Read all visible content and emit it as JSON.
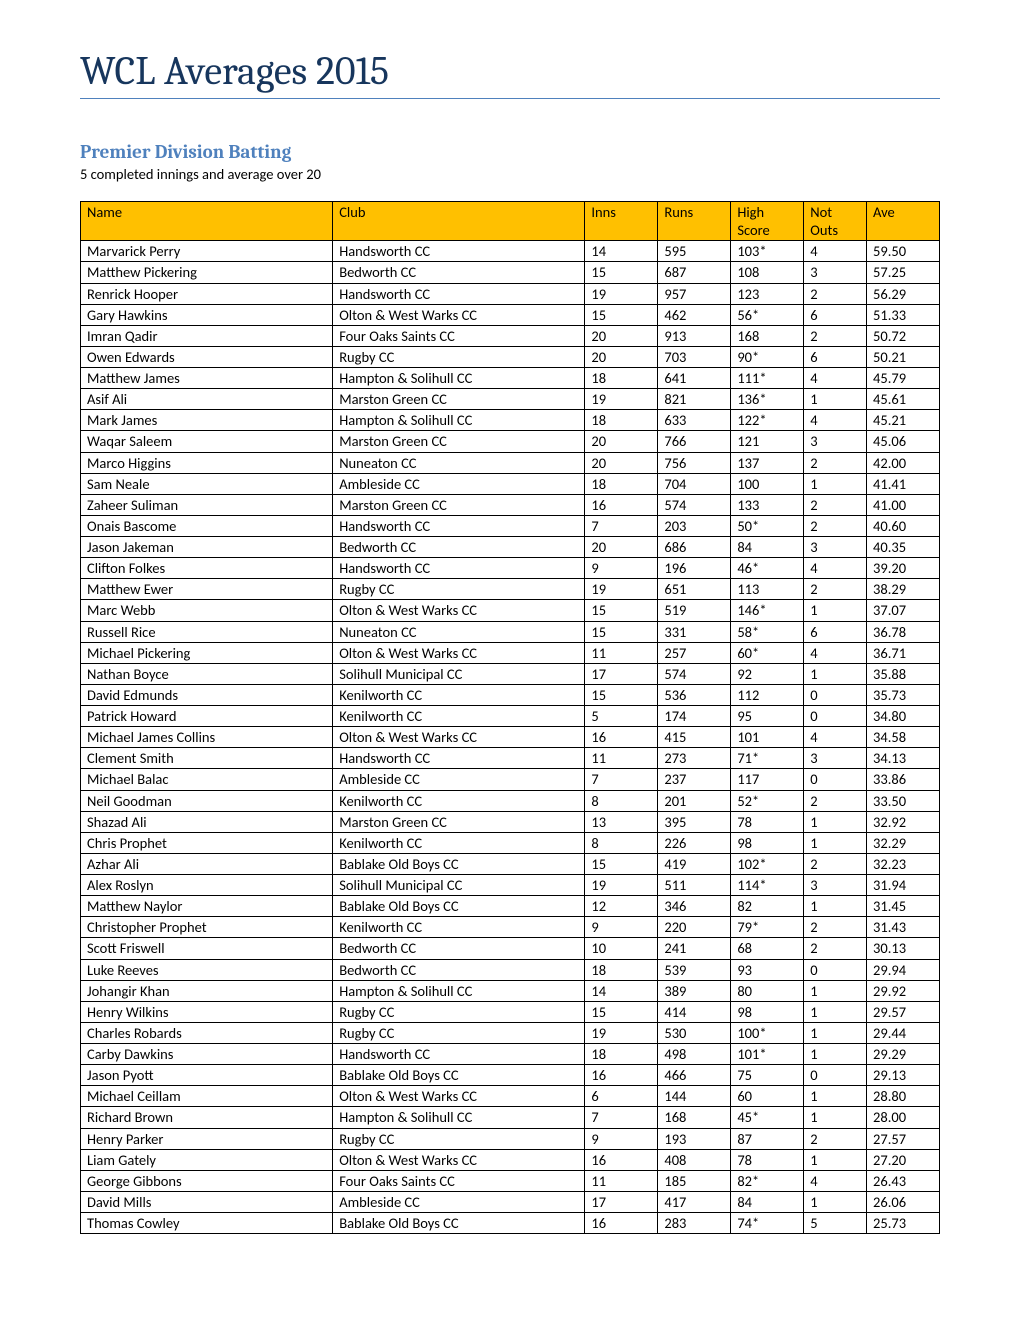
{
  "doc": {
    "title": "WCL Averages 2015",
    "section_title": "Premier Division Batting",
    "subtitle": "5 completed innings and average over 20"
  },
  "table": {
    "headers": {
      "name": "Name",
      "club": "Club",
      "inns": "Inns",
      "runs": "Runs",
      "high": "High Score",
      "nout": "Not Outs",
      "ave": "Ave"
    },
    "rows": [
      {
        "name": "Marvarick Perry",
        "club": "Handsworth CC",
        "inns": "14",
        "runs": "595",
        "high": "103*",
        "nout": "4",
        "ave": "59.50"
      },
      {
        "name": "Matthew Pickering",
        "club": "Bedworth CC",
        "inns": "15",
        "runs": "687",
        "high": "108",
        "nout": "3",
        "ave": "57.25"
      },
      {
        "name": "Renrick Hooper",
        "club": "Handsworth CC",
        "inns": "19",
        "runs": "957",
        "high": "123",
        "nout": "2",
        "ave": "56.29"
      },
      {
        "name": "Gary Hawkins",
        "club": "Olton & West Warks CC",
        "inns": "15",
        "runs": "462",
        "high": "56*",
        "nout": "6",
        "ave": "51.33"
      },
      {
        "name": "Imran Qadir",
        "club": "Four Oaks Saints CC",
        "inns": "20",
        "runs": "913",
        "high": "168",
        "nout": "2",
        "ave": "50.72"
      },
      {
        "name": "Owen Edwards",
        "club": "Rugby CC",
        "inns": "20",
        "runs": "703",
        "high": "90*",
        "nout": "6",
        "ave": "50.21"
      },
      {
        "name": "Matthew James",
        "club": "Hampton & Solihull CC",
        "inns": "18",
        "runs": "641",
        "high": "111*",
        "nout": "4",
        "ave": "45.79"
      },
      {
        "name": "Asif Ali",
        "club": "Marston Green CC",
        "inns": "19",
        "runs": "821",
        "high": "136*",
        "nout": "1",
        "ave": "45.61"
      },
      {
        "name": "Mark James",
        "club": "Hampton & Solihull CC",
        "inns": "18",
        "runs": "633",
        "high": "122*",
        "nout": "4",
        "ave": "45.21"
      },
      {
        "name": "Waqar Saleem",
        "club": "Marston Green CC",
        "inns": "20",
        "runs": "766",
        "high": "121",
        "nout": "3",
        "ave": "45.06"
      },
      {
        "name": "Marco Higgins",
        "club": "Nuneaton CC",
        "inns": "20",
        "runs": "756",
        "high": "137",
        "nout": "2",
        "ave": "42.00"
      },
      {
        "name": "Sam Neale",
        "club": "Ambleside CC",
        "inns": "18",
        "runs": "704",
        "high": "100",
        "nout": "1",
        "ave": "41.41"
      },
      {
        "name": "Zaheer  Suliman",
        "club": "Marston Green CC",
        "inns": "16",
        "runs": "574",
        "high": "133",
        "nout": "2",
        "ave": "41.00"
      },
      {
        "name": "Onais Bascome",
        "club": "Handsworth CC",
        "inns": "7",
        "runs": "203",
        "high": "50*",
        "nout": "2",
        "ave": "40.60"
      },
      {
        "name": "Jason Jakeman",
        "club": "Bedworth CC",
        "inns": "20",
        "runs": "686",
        "high": "84",
        "nout": "3",
        "ave": "40.35"
      },
      {
        "name": "Clifton Folkes",
        "club": "Handsworth CC",
        "inns": "9",
        "runs": "196",
        "high": "46*",
        "nout": "4",
        "ave": "39.20"
      },
      {
        "name": "Matthew Ewer",
        "club": "Rugby CC",
        "inns": "19",
        "runs": "651",
        "high": "113",
        "nout": "2",
        "ave": "38.29"
      },
      {
        "name": "Marc Webb",
        "club": "Olton & West Warks CC",
        "inns": "15",
        "runs": "519",
        "high": "146*",
        "nout": "1",
        "ave": "37.07"
      },
      {
        "name": "Russell Rice",
        "club": "Nuneaton CC",
        "inns": "15",
        "runs": "331",
        "high": "58*",
        "nout": "6",
        "ave": "36.78"
      },
      {
        "name": "Michael  Pickering",
        "club": "Olton & West Warks CC",
        "inns": "11",
        "runs": "257",
        "high": "60*",
        "nout": "4",
        "ave": "36.71"
      },
      {
        "name": "Nathan Boyce",
        "club": "Solihull Municipal CC",
        "inns": "17",
        "runs": "574",
        "high": "92",
        "nout": "1",
        "ave": "35.88"
      },
      {
        "name": "David Edmunds",
        "club": "Kenilworth CC",
        "inns": "15",
        "runs": "536",
        "high": "112",
        "nout": "0",
        "ave": "35.73"
      },
      {
        "name": "Patrick Howard",
        "club": "Kenilworth CC",
        "inns": "5",
        "runs": "174",
        "high": "95",
        "nout": "0",
        "ave": "34.80"
      },
      {
        "name": "Michael James Collins",
        "club": "Olton & West Warks CC",
        "inns": "16",
        "runs": "415",
        "high": "101",
        "nout": "4",
        "ave": "34.58"
      },
      {
        "name": "Clement Smith",
        "club": "Handsworth CC",
        "inns": "11",
        "runs": "273",
        "high": "71*",
        "nout": "3",
        "ave": "34.13"
      },
      {
        "name": "Michael Balac",
        "club": "Ambleside CC",
        "inns": "7",
        "runs": "237",
        "high": "117",
        "nout": "0",
        "ave": "33.86"
      },
      {
        "name": "Neil Goodman",
        "club": "Kenilworth CC",
        "inns": "8",
        "runs": "201",
        "high": "52*",
        "nout": "2",
        "ave": "33.50"
      },
      {
        "name": "Shazad Ali",
        "club": "Marston Green CC",
        "inns": "13",
        "runs": "395",
        "high": "78",
        "nout": "1",
        "ave": "32.92"
      },
      {
        "name": "Chris Prophet",
        "club": "Kenilworth CC",
        "inns": "8",
        "runs": "226",
        "high": "98",
        "nout": "1",
        "ave": "32.29"
      },
      {
        "name": "Azhar Ali",
        "club": "Bablake Old Boys CC",
        "inns": "15",
        "runs": "419",
        "high": "102*",
        "nout": "2",
        "ave": "32.23"
      },
      {
        "name": "Alex Roslyn",
        "club": "Solihull Municipal CC",
        "inns": "19",
        "runs": "511",
        "high": "114*",
        "nout": "3",
        "ave": "31.94"
      },
      {
        "name": "Matthew Naylor",
        "club": "Bablake Old Boys CC",
        "inns": "12",
        "runs": "346",
        "high": "82",
        "nout": "1",
        "ave": "31.45"
      },
      {
        "name": "Christopher Prophet",
        "club": "Kenilworth CC",
        "inns": "9",
        "runs": "220",
        "high": "79*",
        "nout": "2",
        "ave": "31.43"
      },
      {
        "name": "Scott Friswell",
        "club": "Bedworth CC",
        "inns": "10",
        "runs": "241",
        "high": "68",
        "nout": "2",
        "ave": "30.13"
      },
      {
        "name": "Luke Reeves",
        "club": "Bedworth CC",
        "inns": "18",
        "runs": "539",
        "high": "93",
        "nout": "0",
        "ave": "29.94"
      },
      {
        "name": "Johangir Khan",
        "club": "Hampton & Solihull CC",
        "inns": "14",
        "runs": "389",
        "high": "80",
        "nout": "1",
        "ave": "29.92"
      },
      {
        "name": "Henry Wilkins",
        "club": "Rugby CC",
        "inns": "15",
        "runs": "414",
        "high": "98",
        "nout": "1",
        "ave": "29.57"
      },
      {
        "name": "Charles Robards",
        "club": "Rugby CC",
        "inns": "19",
        "runs": "530",
        "high": "100*",
        "nout": "1",
        "ave": "29.44"
      },
      {
        "name": "Carby Dawkins",
        "club": "Handsworth CC",
        "inns": "18",
        "runs": "498",
        "high": "101*",
        "nout": "1",
        "ave": "29.29"
      },
      {
        "name": "Jason Pyott",
        "club": "Bablake Old Boys CC",
        "inns": "16",
        "runs": "466",
        "high": "75",
        "nout": "0",
        "ave": "29.13"
      },
      {
        "name": "Michael Ceillam",
        "club": "Olton & West Warks CC",
        "inns": "6",
        "runs": "144",
        "high": "60",
        "nout": "1",
        "ave": "28.80"
      },
      {
        "name": "Richard Brown",
        "club": "Hampton & Solihull CC",
        "inns": "7",
        "runs": "168",
        "high": "45*",
        "nout": "1",
        "ave": "28.00"
      },
      {
        "name": "Henry Parker",
        "club": "Rugby CC",
        "inns": "9",
        "runs": "193",
        "high": "87",
        "nout": "2",
        "ave": "27.57"
      },
      {
        "name": "Liam Gately",
        "club": "Olton & West Warks CC",
        "inns": "16",
        "runs": "408",
        "high": "78",
        "nout": "1",
        "ave": "27.20"
      },
      {
        "name": "George Gibbons",
        "club": "Four Oaks Saints CC",
        "inns": "11",
        "runs": "185",
        "high": "82*",
        "nout": "4",
        "ave": "26.43"
      },
      {
        "name": "David Mills",
        "club": "Ambleside CC",
        "inns": "17",
        "runs": "417",
        "high": "84",
        "nout": "1",
        "ave": "26.06"
      },
      {
        "name": "Thomas Cowley",
        "club": "Bablake Old Boys CC",
        "inns": "16",
        "runs": "283",
        "high": "74*",
        "nout": "5",
        "ave": "25.73"
      }
    ]
  },
  "style": {
    "title_color": "#17365d",
    "title_underline": "#4f81bd",
    "section_color": "#4f81bd",
    "header_bg": "#ffc000",
    "border_color": "#000000",
    "background": "#ffffff",
    "body_font": "Calibri",
    "title_font": "Cambria",
    "title_size_pt": 30,
    "section_size_pt": 14,
    "body_size_pt": 11
  }
}
